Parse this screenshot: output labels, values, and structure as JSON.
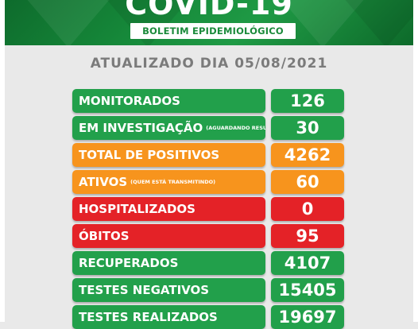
{
  "header": {
    "title": "COVID-19",
    "badge": "BOLETIM EPIDEMIOLÓGICO"
  },
  "subtitle": "ATUALIZADO DIA 05/08/2021",
  "rows": [
    {
      "label": "MONITORADOS",
      "note": "",
      "value": "126",
      "color": "green"
    },
    {
      "label": "EM INVESTIGAÇÃO",
      "note": "(AGUARDANDO RESULTADO)",
      "value": "30",
      "color": "green"
    },
    {
      "label": "TOTAL DE POSITIVOS",
      "note": "",
      "value": "4262",
      "color": "orange"
    },
    {
      "label": "ATIVOS",
      "note": "(QUEM ESTÁ TRANSMITINDO)",
      "value": "60",
      "color": "orange"
    },
    {
      "label": "HOSPITALIZADOS",
      "note": "",
      "value": "0",
      "color": "red"
    },
    {
      "label": "ÓBITOS",
      "note": "",
      "value": "95",
      "color": "red"
    },
    {
      "label": "RECUPERADOS",
      "note": "",
      "value": "4107",
      "color": "green"
    },
    {
      "label": "TESTES NEGATIVOS",
      "note": "",
      "value": "15405",
      "color": "green"
    },
    {
      "label": "TESTES REALIZADOS",
      "note": "",
      "value": "19697",
      "color": "green"
    }
  ]
}
